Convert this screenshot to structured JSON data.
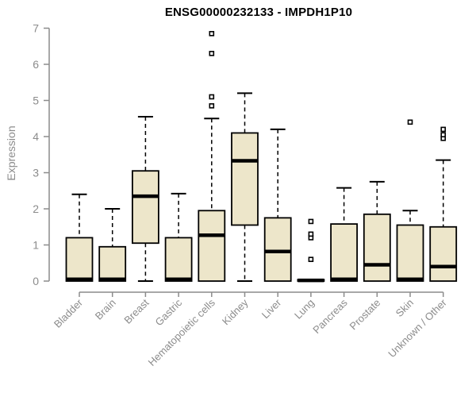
{
  "chart_data": {
    "type": "boxplot",
    "title": "ENSG00000232133 - IMPDH1P10",
    "ylabel": "Expression",
    "xlabel": "",
    "ylim": [
      0,
      7
    ],
    "yticks": [
      0,
      1,
      2,
      3,
      4,
      5,
      6,
      7
    ],
    "grid": false,
    "legend": "none",
    "categories": [
      "Bladder",
      "Brain",
      "Breast",
      "Gastric",
      "Hematopoietic cells",
      "Kidney",
      "Liver",
      "Lung",
      "Pancreas",
      "Prostate",
      "Skin",
      "Unknown / Other"
    ],
    "boxes": [
      {
        "category": "Bladder",
        "whisker_low": 0,
        "q1": 0,
        "median": 0.05,
        "q3": 1.2,
        "whisker_high": 2.4,
        "outliers": []
      },
      {
        "category": "Brain",
        "whisker_low": 0,
        "q1": 0,
        "median": 0.05,
        "q3": 0.95,
        "whisker_high": 2.0,
        "outliers": []
      },
      {
        "category": "Breast",
        "whisker_low": 0,
        "q1": 1.05,
        "median": 2.35,
        "q3": 3.05,
        "whisker_high": 4.55,
        "outliers": []
      },
      {
        "category": "Gastric",
        "whisker_low": 0,
        "q1": 0,
        "median": 0.05,
        "q3": 1.2,
        "whisker_high": 2.42,
        "outliers": []
      },
      {
        "category": "Hematopoietic cells",
        "whisker_low": 0,
        "q1": 0,
        "median": 1.27,
        "q3": 1.95,
        "whisker_high": 4.5,
        "outliers": [
          4.85,
          5.1,
          6.3,
          6.85
        ]
      },
      {
        "category": "Kidney",
        "whisker_low": 0,
        "q1": 1.55,
        "median": 3.33,
        "q3": 4.1,
        "whisker_high": 5.2,
        "outliers": []
      },
      {
        "category": "Liver",
        "whisker_low": 0,
        "q1": 0,
        "median": 0.82,
        "q3": 1.75,
        "whisker_high": 4.2,
        "outliers": []
      },
      {
        "category": "Lung",
        "whisker_low": 0,
        "q1": 0,
        "median": 0.02,
        "q3": 0.04,
        "whisker_high": 0.04,
        "outliers": [
          0.6,
          1.2,
          1.3,
          1.65
        ]
      },
      {
        "category": "Pancreas",
        "whisker_low": 0,
        "q1": 0,
        "median": 0.05,
        "q3": 1.58,
        "whisker_high": 2.58,
        "outliers": []
      },
      {
        "category": "Prostate",
        "whisker_low": 0,
        "q1": 0,
        "median": 0.45,
        "q3": 1.85,
        "whisker_high": 2.75,
        "outliers": []
      },
      {
        "category": "Skin",
        "whisker_low": 0,
        "q1": 0,
        "median": 0.05,
        "q3": 1.55,
        "whisker_high": 1.95,
        "outliers": [
          4.4
        ]
      },
      {
        "category": "Unknown / Other",
        "whisker_low": 0,
        "q1": 0,
        "median": 0.4,
        "q3": 1.5,
        "whisker_high": 3.35,
        "outliers": [
          3.95,
          4.05,
          4.2
        ]
      }
    ],
    "colors": {
      "box_fill": "#EDE6CA",
      "box_border": "#000000",
      "median": "#000000",
      "whisker": "#000000",
      "axis": "#8C8C8C",
      "tick_label": "#8C8C8C",
      "title": "#000000",
      "background": "#FFFFFF"
    }
  }
}
